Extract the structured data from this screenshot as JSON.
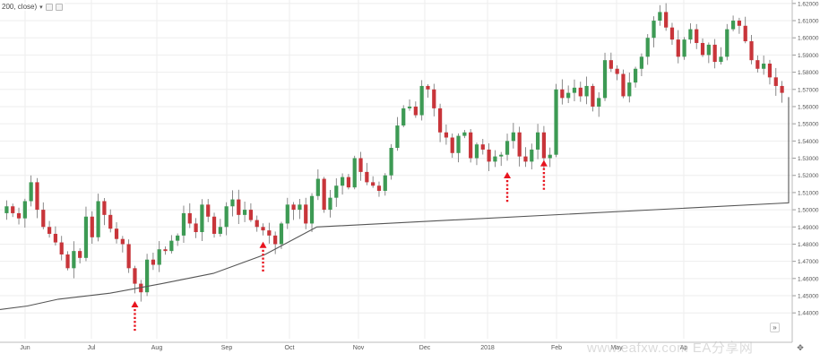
{
  "indicator": {
    "label": "200, close)",
    "chevron": "chevron-down-icon",
    "buttons": [
      "settings-icon",
      "close-icon"
    ]
  },
  "watermark": "www.eafxw.com  EA分享网",
  "scroll_icon": "»",
  "corner_icon": "✥",
  "colors": {
    "up": "#3d9a54",
    "down": "#c8353a",
    "wick": "#6e6e6e",
    "ma": "#555555",
    "grid": "#eeeeee",
    "arrow": "#e8141e",
    "axis_text": "#555555"
  },
  "chart_data": {
    "type": "candlestick",
    "title": "",
    "x_ticks": [
      "Jun",
      "Jul",
      "Aug",
      "Sep",
      "Oct",
      "Nov",
      "Dec",
      "2018",
      "Feb",
      "May",
      "Ap"
    ],
    "y_ticks": [
      1.44,
      1.45,
      1.46,
      1.47,
      1.48,
      1.49,
      1.5,
      1.51,
      1.52,
      1.53,
      1.54,
      1.55,
      1.56,
      1.57,
      1.58,
      1.59,
      1.6,
      1.61,
      1.62
    ],
    "y_tick_format": "5 decimals",
    "ylim": [
      1.425,
      1.622
    ],
    "moving_average": {
      "period": 200,
      "source": "close",
      "points": [
        [
          0,
          1.442
        ],
        [
          8,
          1.444
        ],
        [
          20,
          1.448
        ],
        [
          40,
          1.4515
        ],
        [
          60,
          1.457
        ],
        [
          80,
          1.463
        ],
        [
          100,
          1.474
        ],
        [
          120,
          1.49
        ],
        [
          140,
          1.504
        ],
        [
          160,
          1.512
        ],
        [
          180,
          1.519
        ],
        [
          200,
          1.526
        ],
        [
          210,
          1.531
        ],
        [
          220,
          1.537
        ],
        [
          240,
          1.546
        ],
        [
          260,
          1.552
        ],
        [
          280,
          1.559
        ],
        [
          300,
          1.5655
        ]
      ]
    },
    "closes": [
      1.502,
      1.498,
      1.495,
      1.505,
      1.516,
      1.5,
      1.49,
      1.486,
      1.481,
      1.474,
      1.466,
      1.476,
      1.472,
      1.496,
      1.484,
      1.505,
      1.497,
      1.489,
      1.483,
      1.48,
      1.466,
      1.457,
      1.452,
      1.471,
      1.468,
      1.477,
      1.476,
      1.482,
      1.485,
      1.498,
      1.492,
      1.487,
      1.503,
      1.496,
      1.486,
      1.49,
      1.502,
      1.506,
      1.497,
      1.5,
      1.494,
      1.49,
      1.488,
      1.485,
      1.48,
      1.492,
      1.503,
      1.5,
      1.503,
      1.492,
      1.508,
      1.518,
      1.5,
      1.507,
      1.514,
      1.519,
      1.513,
      1.53,
      1.522,
      1.516,
      1.514,
      1.511,
      1.52,
      1.536,
      1.549,
      1.559,
      1.56,
      1.555,
      1.572,
      1.57,
      1.559,
      1.545,
      1.542,
      1.533,
      1.543,
      1.545,
      1.53,
      1.538,
      1.535,
      1.528,
      1.531,
      1.532,
      1.54,
      1.545,
      1.531,
      1.528,
      1.535,
      1.545,
      1.53,
      1.532,
      1.57,
      1.565,
      1.568,
      1.571,
      1.566,
      1.572,
      1.56,
      1.565,
      1.587,
      1.582,
      1.579,
      1.566,
      1.574,
      1.582,
      1.589,
      1.6,
      1.61,
      1.615,
      1.606,
      1.599,
      1.589,
      1.599,
      1.605,
      1.597,
      1.59,
      1.596,
      1.586,
      1.589,
      1.605,
      1.61,
      1.607,
      1.598,
      1.587,
      1.582,
      1.585,
      1.577,
      1.572,
      1.568
    ],
    "markers": [
      {
        "label": "up-arrow",
        "candle_index": 21,
        "price": 1.449
      },
      {
        "label": "up-arrow",
        "candle_index": 42,
        "price": 1.4835
      },
      {
        "label": "up-arrow",
        "candle_index": 82,
        "price": 1.524
      },
      {
        "label": "up-arrow",
        "candle_index": 88,
        "price": 1.531
      }
    ]
  }
}
